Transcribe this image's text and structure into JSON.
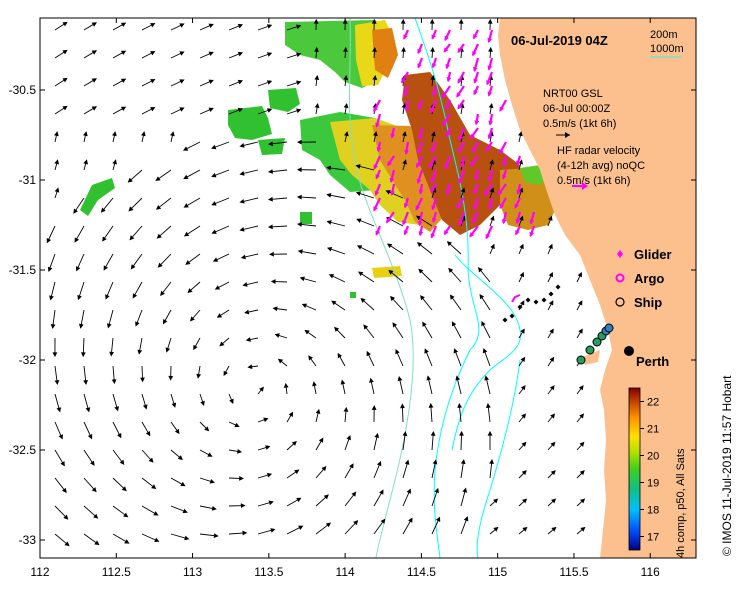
{
  "title": "06-Jul-2019 04Z",
  "depth_legend": {
    "contour_200": "200m",
    "contour_1000": "1000m",
    "color_200": "#00ffff",
    "color_1000": "#80e0c0"
  },
  "model_note": {
    "line1": "NRT00 GSL",
    "line2": "06-Jul 00:00Z",
    "line3": "0.5m/s (1kt 6h)"
  },
  "radar_note": {
    "line1": "HF radar velocity",
    "line2": "(4-12h avg) noQC",
    "line3": "0.5m/s (1kt 6h)"
  },
  "legend": [
    {
      "label": "Glider",
      "color": "#ff00ff",
      "symbol": "diamond"
    },
    {
      "label": "Argo",
      "color": "#ff00ff",
      "symbol": "ring"
    },
    {
      "label": "Ship",
      "color": "#000000",
      "symbol": "circle"
    }
  ],
  "city": "Perth",
  "colorbar": {
    "label": "4h comp, p50, All Sats",
    "ticks": [
      "22",
      "21",
      "20",
      "19",
      "18",
      "17"
    ],
    "range": [
      16.5,
      22.5
    ]
  },
  "credit": "© IMOS 11-Jul-2019 11:57 Hobart",
  "axes": {
    "x_ticks": [
      "112",
      "112.5",
      "113",
      "113.5",
      "114",
      "114.5",
      "115",
      "115.5",
      "116"
    ],
    "x_values": [
      112,
      112.5,
      113,
      113.5,
      114,
      114.5,
      115,
      115.5,
      116
    ],
    "y_ticks": [
      "-30.5",
      "-31",
      "-31.5",
      "-32",
      "-32.5",
      "-33"
    ],
    "y_values": [
      -30.5,
      -31,
      -31.5,
      -32,
      -32.5,
      -33
    ],
    "lon_range": [
      112,
      116.3
    ],
    "lat_range": [
      -30.1,
      -33.1
    ]
  },
  "colors": {
    "land": "#fbc08e",
    "ocean": "#ffffff",
    "arrow_black": "#000000",
    "arrow_radar": "#ff00ff"
  }
}
